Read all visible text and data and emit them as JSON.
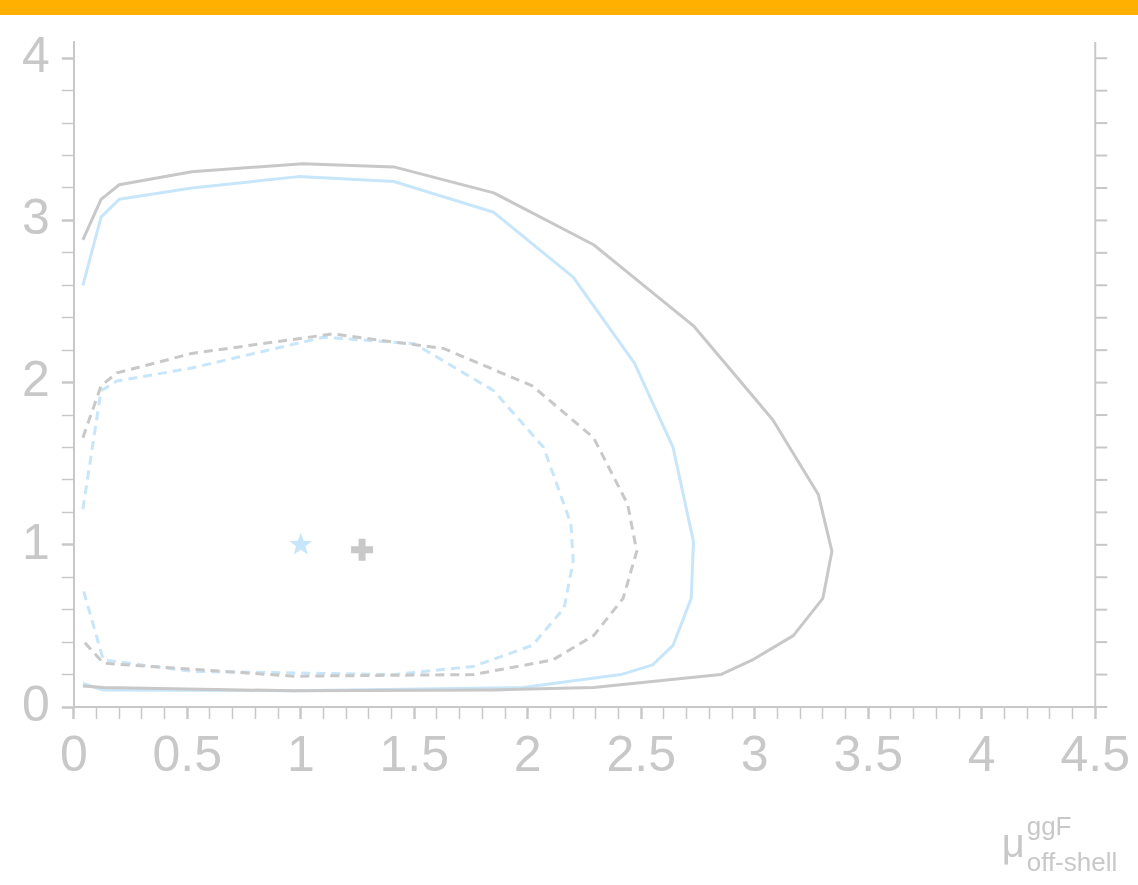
{
  "chart_data": {
    "type": "line",
    "xlabel": "μ$^{ggF}$$_{off-shell}$",
    "xlim": [
      0,
      4.5
    ],
    "ylim": [
      0,
      4.1
    ],
    "xticks": [
      0,
      {
        "value": 0.1,
        "label": null
      },
      {
        "value": 0.2,
        "label": null
      },
      {
        "value": 0.3,
        "label": null
      },
      {
        "value": 0.4,
        "label": null
      },
      0.5,
      {
        "value": 0.6,
        "label": null
      },
      {
        "value": 0.7,
        "label": null
      },
      {
        "value": 0.8,
        "label": null
      },
      {
        "value": 0.9,
        "label": null
      },
      1,
      {
        "value": 1.1,
        "label": null
      },
      {
        "value": 1.2,
        "label": null
      },
      {
        "value": 1.3,
        "label": null
      },
      {
        "value": 1.4,
        "label": null
      },
      1.5,
      {
        "value": 1.6,
        "label": null
      },
      {
        "value": 1.7,
        "label": null
      },
      {
        "value": 1.8,
        "label": null
      },
      {
        "value": 1.9,
        "label": null
      },
      2,
      {
        "value": 2.1,
        "label": null
      },
      {
        "value": 2.2,
        "label": null
      },
      {
        "value": 2.3,
        "label": null
      },
      {
        "value": 2.4,
        "label": null
      },
      2.5,
      {
        "value": 2.6,
        "label": null
      },
      {
        "value": 2.7,
        "label": null
      },
      {
        "value": 2.8,
        "label": null
      },
      {
        "value": 2.9,
        "label": null
      },
      3,
      {
        "value": 3.1,
        "label": null
      },
      {
        "value": 3.2,
        "label": null
      },
      {
        "value": 3.3,
        "label": null
      },
      {
        "value": 3.4,
        "label": null
      },
      3.5,
      {
        "value": 3.6,
        "label": null
      },
      {
        "value": 3.7,
        "label": null
      },
      {
        "value": 3.8,
        "label": null
      },
      {
        "value": 3.9,
        "label": null
      },
      4,
      {
        "value": 4.1,
        "label": null
      },
      {
        "value": 4.2,
        "label": null
      },
      {
        "value": 4.3,
        "label": null
      },
      {
        "value": 4.4,
        "label": null
      },
      4.5
    ],
    "yticks": [
      0,
      {
        "value": 0.2,
        "label": null
      },
      {
        "value": 0.4,
        "label": null
      },
      {
        "value": 0.6,
        "label": null
      },
      {
        "value": 0.8,
        "label": null
      },
      1,
      {
        "value": 1.2,
        "label": null
      },
      {
        "value": 1.4,
        "label": null
      },
      {
        "value": 1.6,
        "label": null
      },
      {
        "value": 1.8,
        "label": null
      },
      2,
      {
        "value": 2.2,
        "label": null
      },
      {
        "value": 2.4,
        "label": null
      },
      {
        "value": 2.6,
        "label": null
      },
      {
        "value": 2.8,
        "label": null
      },
      3,
      {
        "value": 3.2,
        "label": null
      },
      {
        "value": 3.4,
        "label": null
      },
      {
        "value": 3.6,
        "label": null
      },
      {
        "value": 3.8,
        "label": null
      },
      4
    ],
    "series": [
      {
        "type": "line",
        "color": "#c8c8c8",
        "line_style": "solid",
        "marker": "none",
        "x": [
          0.04,
          0.12,
          0.2,
          0.52,
          1.01,
          1.41,
          1.85,
          2.29,
          2.73,
          3.08,
          3.28,
          3.34,
          3.3,
          3.17,
          2.99,
          2.85,
          2.29,
          1.85,
          0.97,
          0.13,
          0.04
        ],
        "values": [
          2.88,
          3.13,
          3.22,
          3.3,
          3.35,
          3.33,
          3.17,
          2.85,
          2.35,
          1.77,
          1.31,
          0.96,
          0.67,
          0.44,
          0.29,
          0.2,
          0.12,
          0.105,
          0.1,
          0.12,
          0.13
        ]
      },
      {
        "type": "line",
        "color": "#c8e6fa",
        "line_style": "solid",
        "marker": "none",
        "x": [
          0.04,
          0.12,
          0.2,
          0.52,
          0.99,
          1.41,
          1.85,
          2.2,
          2.47,
          2.64,
          2.73,
          2.72,
          2.64,
          2.55,
          2.41,
          1.98,
          0.97,
          0.13,
          0.04
        ],
        "values": [
          2.6,
          3.02,
          3.13,
          3.2,
          3.27,
          3.24,
          3.05,
          2.65,
          2.12,
          1.6,
          1.02,
          0.67,
          0.38,
          0.26,
          0.2,
          0.12,
          0.1,
          0.105,
          0.145
        ]
      },
      {
        "type": "line",
        "color": "#c8c8c8",
        "line_style": "dashed",
        "marker": "none",
        "x": [
          0.04,
          0.12,
          0.19,
          0.52,
          1.14,
          1.63,
          2.02,
          2.29,
          2.44,
          2.48,
          2.42,
          2.29,
          2.11,
          1.76,
          0.97,
          0.13,
          0.04
        ],
        "values": [
          1.66,
          1.98,
          2.06,
          2.18,
          2.3,
          2.21,
          1.98,
          1.66,
          1.25,
          0.96,
          0.67,
          0.44,
          0.29,
          0.2,
          0.19,
          0.27,
          0.41
        ]
      },
      {
        "type": "line",
        "color": "#c8e6fa",
        "line_style": "dashed",
        "marker": "none",
        "x": [
          0.04,
          0.12,
          0.19,
          0.52,
          1.1,
          1.5,
          1.85,
          2.07,
          2.19,
          2.2,
          2.16,
          2.02,
          1.76,
          1.41,
          0.52,
          0.13,
          0.04
        ],
        "values": [
          1.22,
          1.95,
          2.01,
          2.09,
          2.28,
          2.24,
          1.95,
          1.6,
          1.13,
          0.9,
          0.61,
          0.38,
          0.25,
          0.2,
          0.22,
          0.29,
          0.73
        ]
      },
      {
        "type": "scatter",
        "color": "#c8e6fa",
        "marker": "star",
        "x": [
          1
        ],
        "values": [
          1
        ]
      },
      {
        "type": "scatter",
        "color": "#c8c8c8",
        "marker": "cross",
        "x": [
          1.27
        ],
        "values": [
          0.97
        ]
      }
    ]
  }
}
